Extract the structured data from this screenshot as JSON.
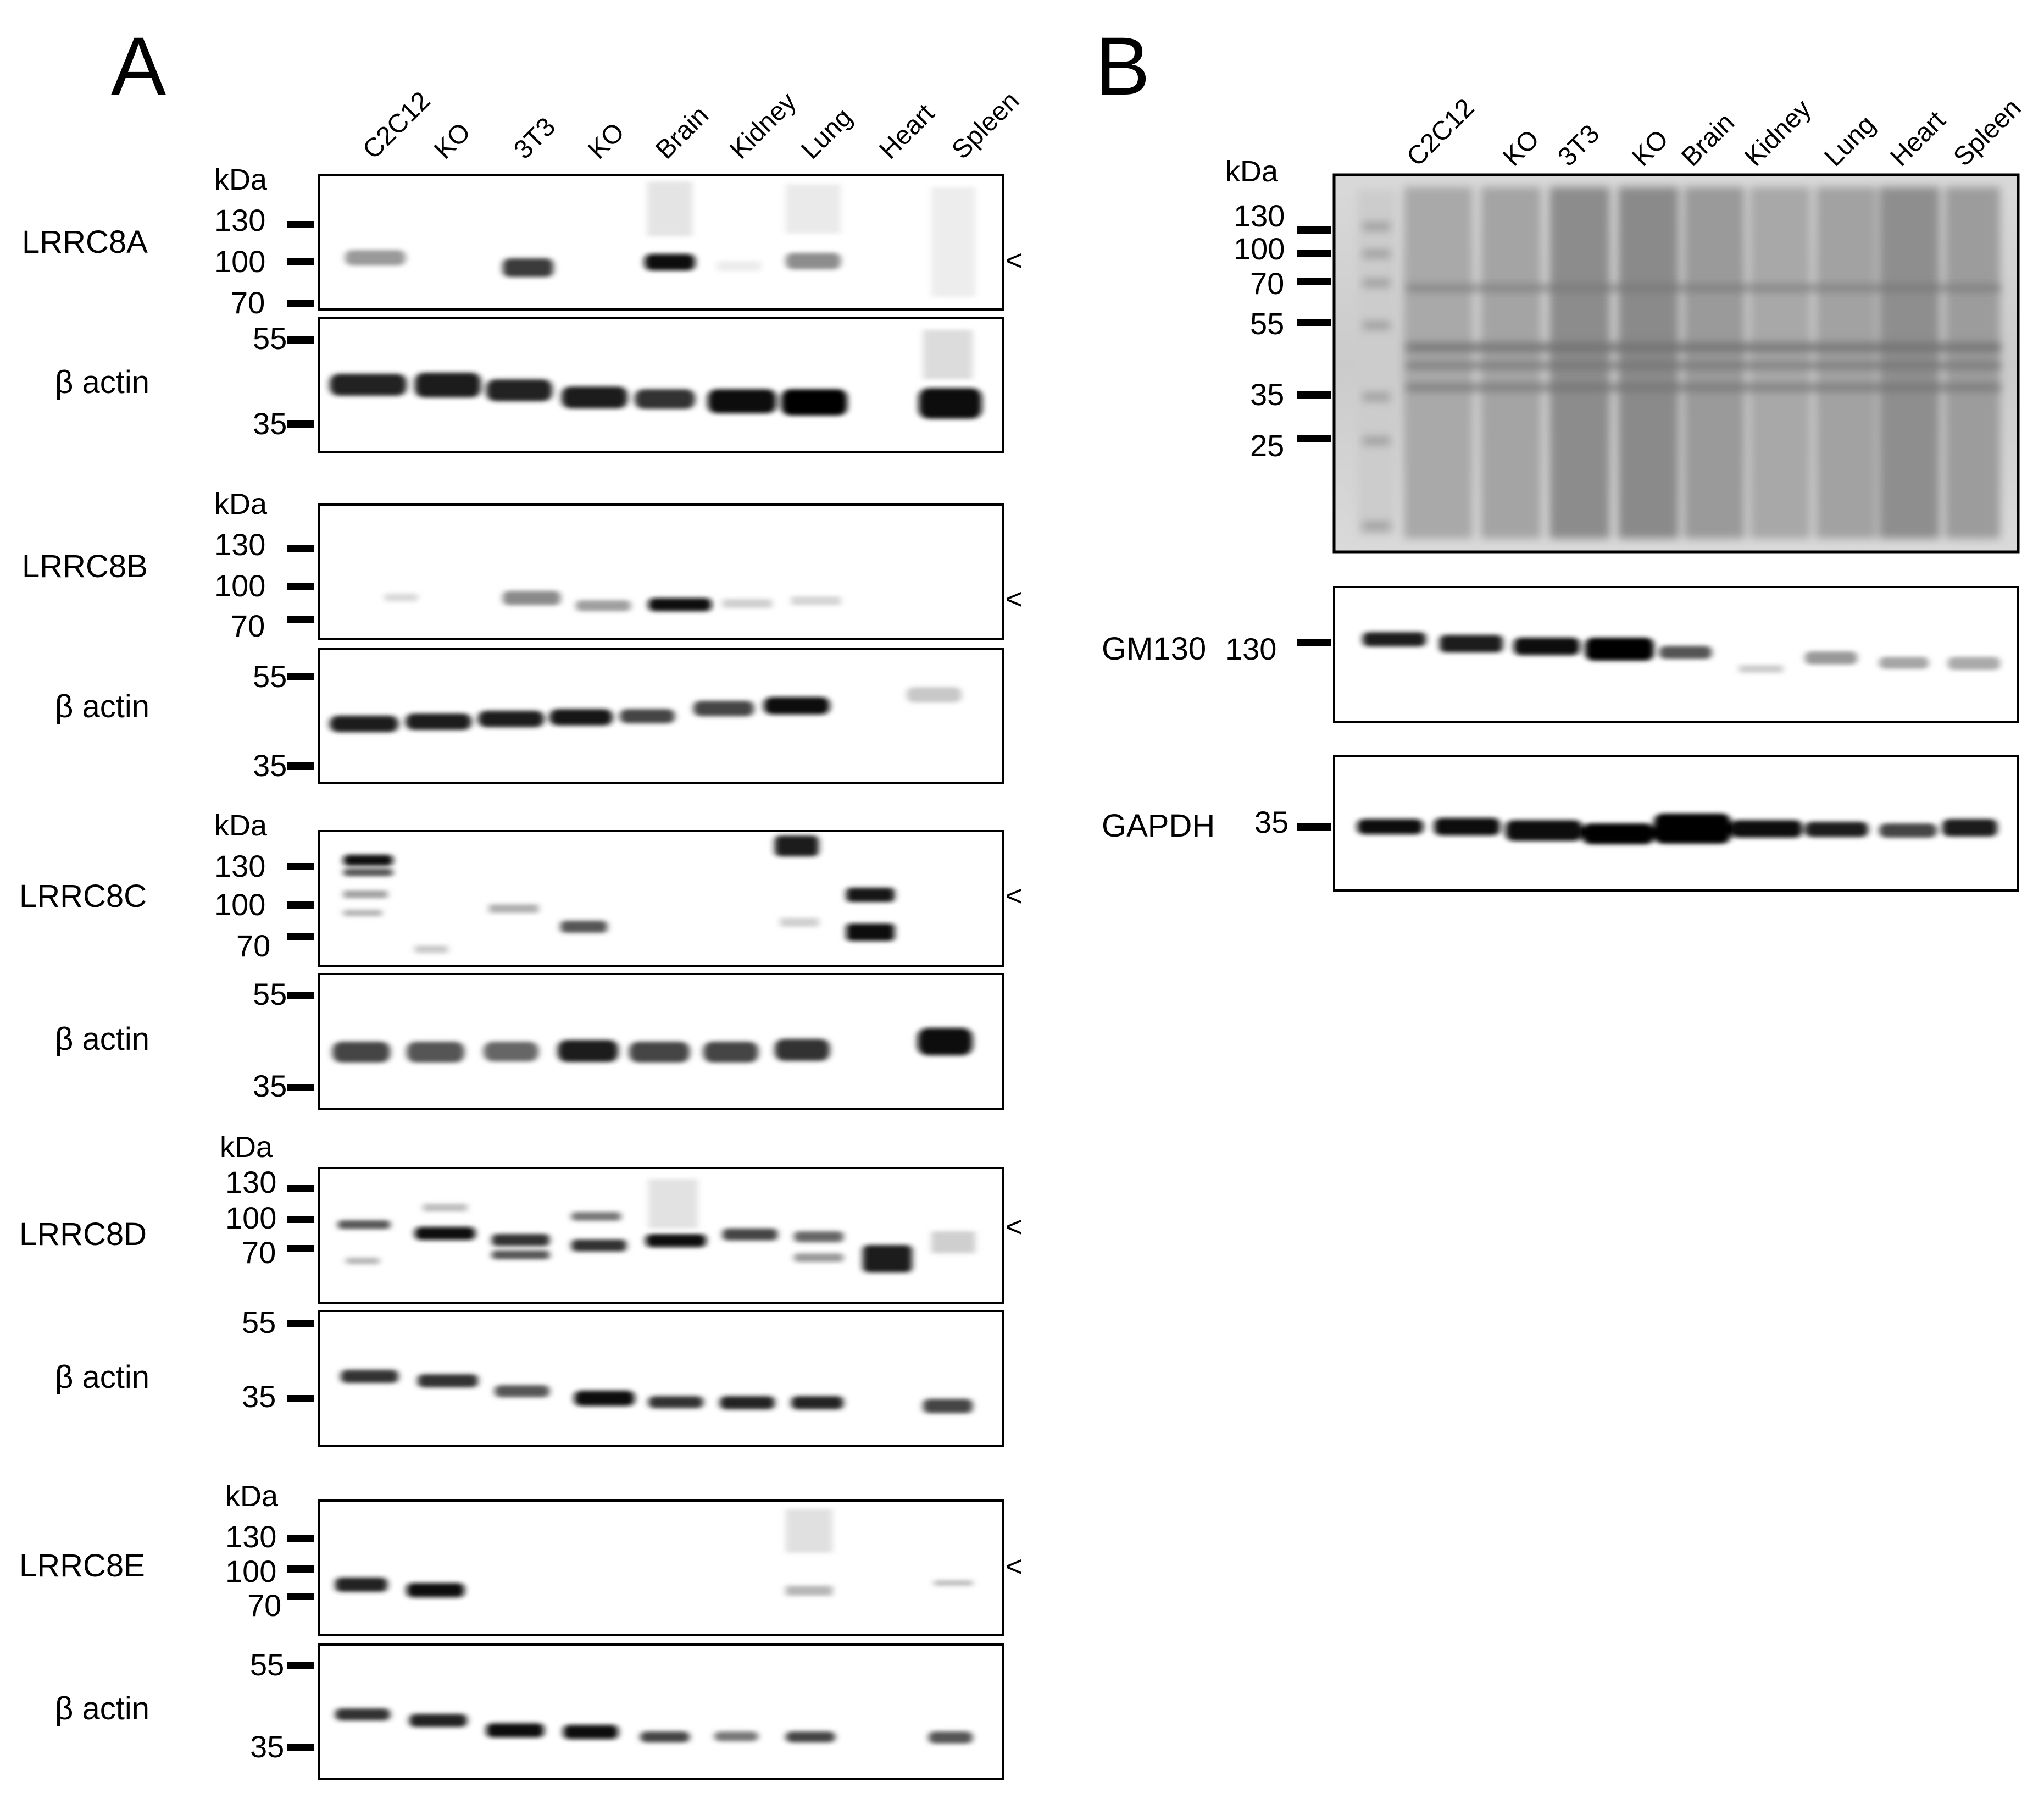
{
  "panel_a": {
    "letter": "A",
    "lanes": [
      "C2C12",
      "KO",
      "3T3",
      "KO",
      "Brain",
      "Kidney",
      "Lung",
      "Heart",
      "Spleen"
    ],
    "blots": [
      {
        "protein": "LRRC8A",
        "kda_label": "kDa",
        "markers": [
          "130",
          "100",
          "70"
        ],
        "loading": "β actin",
        "loading_markers": [
          "55",
          "35"
        ],
        "arrow": "<"
      },
      {
        "protein": "LRRC8B",
        "kda_label": "kDa",
        "markers": [
          "130",
          "100",
          "70"
        ],
        "loading": "β actin",
        "loading_markers": [
          "55",
          "35"
        ],
        "arrow": "<"
      },
      {
        "protein": "LRRC8C",
        "kda_label": "kDa",
        "markers": [
          "130",
          "100",
          "70"
        ],
        "loading": "β actin",
        "loading_markers": [
          "55",
          "35"
        ],
        "arrow": "<"
      },
      {
        "protein": "LRRC8D",
        "kda_label": "kDa",
        "markers": [
          "130",
          "100",
          "70"
        ],
        "loading": "β actin",
        "loading_markers": [
          "55",
          "35"
        ],
        "arrow": "<"
      },
      {
        "protein": "LRRC8E",
        "kda_label": "kDa",
        "markers": [
          "130",
          "100",
          "70"
        ],
        "loading": "β actin",
        "loading_markers": [
          "55",
          "35"
        ],
        "arrow": "<"
      }
    ]
  },
  "panel_b": {
    "letter": "B",
    "lanes": [
      "C2C12",
      "KO",
      "3T3",
      "KO",
      "Brain",
      "Kidney",
      "Lung",
      "Heart",
      "Spleen"
    ],
    "stain": {
      "kda_label": "kDa",
      "markers": [
        "130",
        "100",
        "70",
        "55",
        "35",
        "25"
      ]
    },
    "gm130": {
      "label": "GM130",
      "marker": "130"
    },
    "gapdh": {
      "label": "GAPDH",
      "marker": "35"
    }
  },
  "colors": {
    "band": "#111111",
    "membrane_bg": "#ffffff",
    "stain_bg": "#d2d2d2",
    "border": "#000000"
  }
}
